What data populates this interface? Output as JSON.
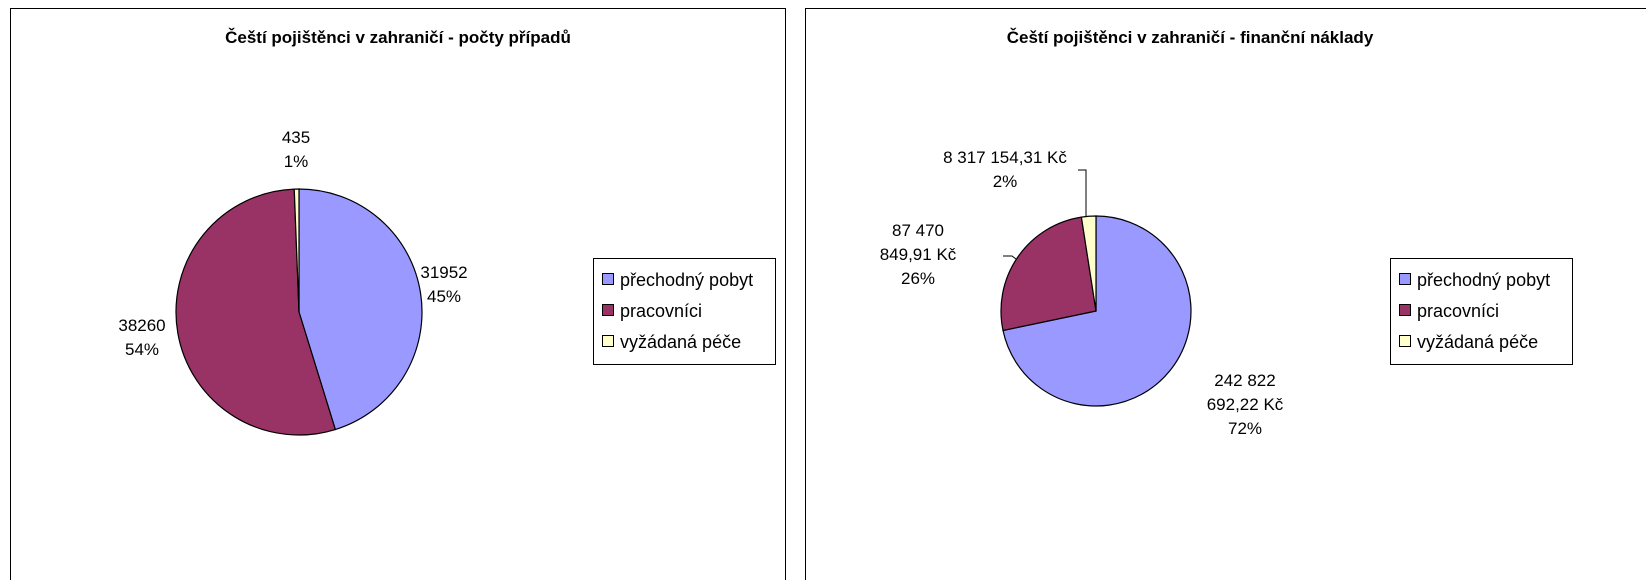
{
  "chart_data": [
    {
      "type": "pie",
      "title": "Čeští pojištěnci v zahraničí - počty případů",
      "categories": [
        "přechodný pobyt",
        "pracovníci",
        "vyžádaná péče"
      ],
      "values": [
        31952,
        38260,
        435
      ],
      "percent_labels": [
        "45%",
        "54%",
        "1%"
      ],
      "colors": [
        "#9999ff",
        "#993366",
        "#ffffcc"
      ]
    },
    {
      "type": "pie",
      "title": "Čeští pojištěnci v zahraničí - finanční náklady",
      "categories": [
        "přechodný pobyt",
        "pracovníci",
        "vyžádaná péče"
      ],
      "values": [
        242822692.22,
        87470849.91,
        8317154.31
      ],
      "value_labels": [
        "242 822 692,22 Kč",
        "87 470 849,91 Kč",
        "8 317 154,31 Kč"
      ],
      "percent_labels": [
        "72%",
        "26%",
        "2%"
      ],
      "colors": [
        "#9999ff",
        "#993366",
        "#ffffcc"
      ]
    }
  ]
}
